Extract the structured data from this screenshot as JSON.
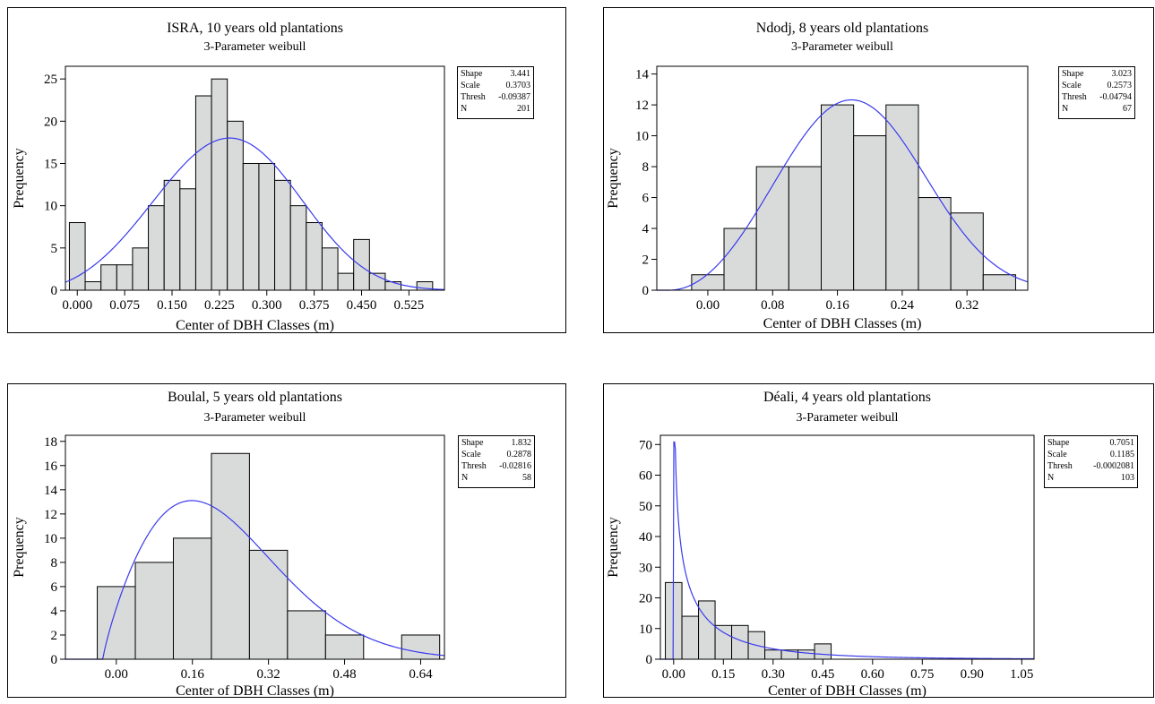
{
  "chart_data": [
    {
      "type": "bar",
      "title": "ISRA, 10 years old plantations",
      "subtitle": "3-Parameter weibull",
      "xlabel": "Center of DBH Classes (m)",
      "ylabel": "Prequency",
      "xlim": [
        -0.0188,
        0.5812
      ],
      "ylim": [
        0,
        26.5
      ],
      "bin_width": 0.025,
      "xticks": [
        0.0,
        0.075,
        0.15,
        0.225,
        0.3,
        0.375,
        0.45,
        0.525
      ],
      "xtick_labels": [
        "0.000",
        "0.075",
        "0.150",
        "0.225",
        "0.300",
        "0.375",
        "0.450",
        "0.525"
      ],
      "yticks": [
        0,
        5,
        10,
        15,
        20,
        25
      ],
      "bins": [
        0.0,
        0.025,
        0.05,
        0.075,
        0.1,
        0.125,
        0.15,
        0.175,
        0.2,
        0.225,
        0.25,
        0.275,
        0.3,
        0.325,
        0.35,
        0.375,
        0.4,
        0.425,
        0.45,
        0.475,
        0.5,
        0.525,
        0.55
      ],
      "values": [
        8,
        1,
        3,
        3,
        5,
        10,
        13,
        12,
        23,
        25,
        20,
        15,
        15,
        13,
        10,
        8,
        5,
        2,
        6,
        2,
        1,
        0,
        1
      ],
      "fit": {
        "shape": 3.441,
        "scale": 0.3703,
        "thresh": -0.09387,
        "n": 201
      },
      "legend": [
        {
          "label": "Shape",
          "value": "3.441"
        },
        {
          "label": "Scale",
          "value": "0.3703"
        },
        {
          "label": "Thresh",
          "value": "-0.09387"
        },
        {
          "label": "N",
          "value": "201"
        }
      ],
      "legend_position": "top-right outside plot",
      "bar_color": "#d9dbdb",
      "curve_color": "#3a3aee"
    },
    {
      "type": "bar",
      "title": "Ndodj, 8 years old plantations",
      "subtitle": "3-Parameter weibull",
      "xlabel": "Center of DBH Classes (m)",
      "ylabel": "Prequency",
      "xlim": [
        -0.063,
        0.395
      ],
      "ylim": [
        0,
        14.5
      ],
      "bin_width": 0.04,
      "xticks": [
        0.0,
        0.08,
        0.16,
        0.24,
        0.32
      ],
      "xtick_labels": [
        "0.00",
        "0.08",
        "0.16",
        "0.24",
        "0.32"
      ],
      "yticks": [
        0,
        2,
        4,
        6,
        8,
        10,
        12,
        14
      ],
      "bins": [
        0.0,
        0.04,
        0.08,
        0.12,
        0.16,
        0.2,
        0.24,
        0.28,
        0.32,
        0.36
      ],
      "values": [
        1,
        4,
        8,
        8,
        12,
        10,
        12,
        6,
        5,
        1
      ],
      "fit": {
        "shape": 3.023,
        "scale": 0.2573,
        "thresh": -0.04794,
        "n": 67
      },
      "legend": [
        {
          "label": "Shape",
          "value": "3.023"
        },
        {
          "label": "Scale",
          "value": "0.2573"
        },
        {
          "label": "Thresh",
          "value": "-0.04794"
        },
        {
          "label": "N",
          "value": "67"
        }
      ],
      "legend_position": "top-right outside plot",
      "bar_color": "#d9dbdb",
      "curve_color": "#3a3aee"
    },
    {
      "type": "bar",
      "title": "Boulal, 5 years old plantations",
      "subtitle": "3-Parameter weibull",
      "xlabel": "Center of DBH Classes (m)",
      "ylabel": "Prequency",
      "xlim": [
        -0.107,
        0.69
      ],
      "ylim": [
        0,
        18.5
      ],
      "bin_width": 0.08,
      "xticks": [
        0.0,
        0.16,
        0.32,
        0.48,
        0.64
      ],
      "xtick_labels": [
        "0.00",
        "0.16",
        "0.32",
        "0.48",
        "0.64"
      ],
      "yticks": [
        0,
        2,
        4,
        6,
        8,
        10,
        12,
        14,
        16,
        18
      ],
      "bins": [
        0.0,
        0.08,
        0.16,
        0.24,
        0.32,
        0.4,
        0.48,
        0.56,
        0.64
      ],
      "values": [
        6,
        8,
        10,
        17,
        9,
        4,
        2,
        0,
        2
      ],
      "fit": {
        "shape": 1.832,
        "scale": 0.2878,
        "thresh": -0.02816,
        "n": 58
      },
      "legend": [
        {
          "label": "Shape",
          "value": "1.832"
        },
        {
          "label": "Scale",
          "value": "0.2878"
        },
        {
          "label": "Thresh",
          "value": "-0.02816"
        },
        {
          "label": "N",
          "value": "58"
        }
      ],
      "legend_position": "top-right outside plot",
      "bar_color": "#d9dbdb",
      "curve_color": "#3a3aee"
    },
    {
      "type": "bar",
      "title": "Déali, 4 years old plantations",
      "subtitle": "3-Parameter weibull",
      "xlabel": "Center of DBH Classes (m)",
      "ylabel": "Prequency",
      "xlim": [
        -0.04,
        1.087
      ],
      "ylim": [
        0,
        73
      ],
      "bin_width": 0.05,
      "xticks": [
        0.0,
        0.15,
        0.3,
        0.45,
        0.6,
        0.75,
        0.9,
        1.05
      ],
      "xtick_labels": [
        "0.00",
        "0.15",
        "0.30",
        "0.45",
        "0.60",
        "0.75",
        "0.90",
        "1.05"
      ],
      "yticks": [
        0,
        10,
        20,
        30,
        40,
        50,
        60,
        70
      ],
      "bins": [
        0.0,
        0.05,
        0.1,
        0.15,
        0.2,
        0.25,
        0.3,
        0.35,
        0.4,
        0.45
      ],
      "values": [
        25,
        14,
        19,
        11,
        11,
        9,
        3,
        3,
        3,
        5
      ],
      "fit": {
        "shape": 0.7051,
        "scale": 0.1185,
        "thresh": -0.0002081,
        "n": 103
      },
      "legend": [
        {
          "label": "Shape",
          "value": "0.7051"
        },
        {
          "label": "Scale",
          "value": "0.1185"
        },
        {
          "label": "Thresh",
          "value": "-0.0002081"
        },
        {
          "label": "N",
          "value": "103"
        }
      ],
      "legend_position": "top-right outside plot",
      "bar_color": "#d9dbdb",
      "curve_color": "#3a3aee"
    }
  ]
}
